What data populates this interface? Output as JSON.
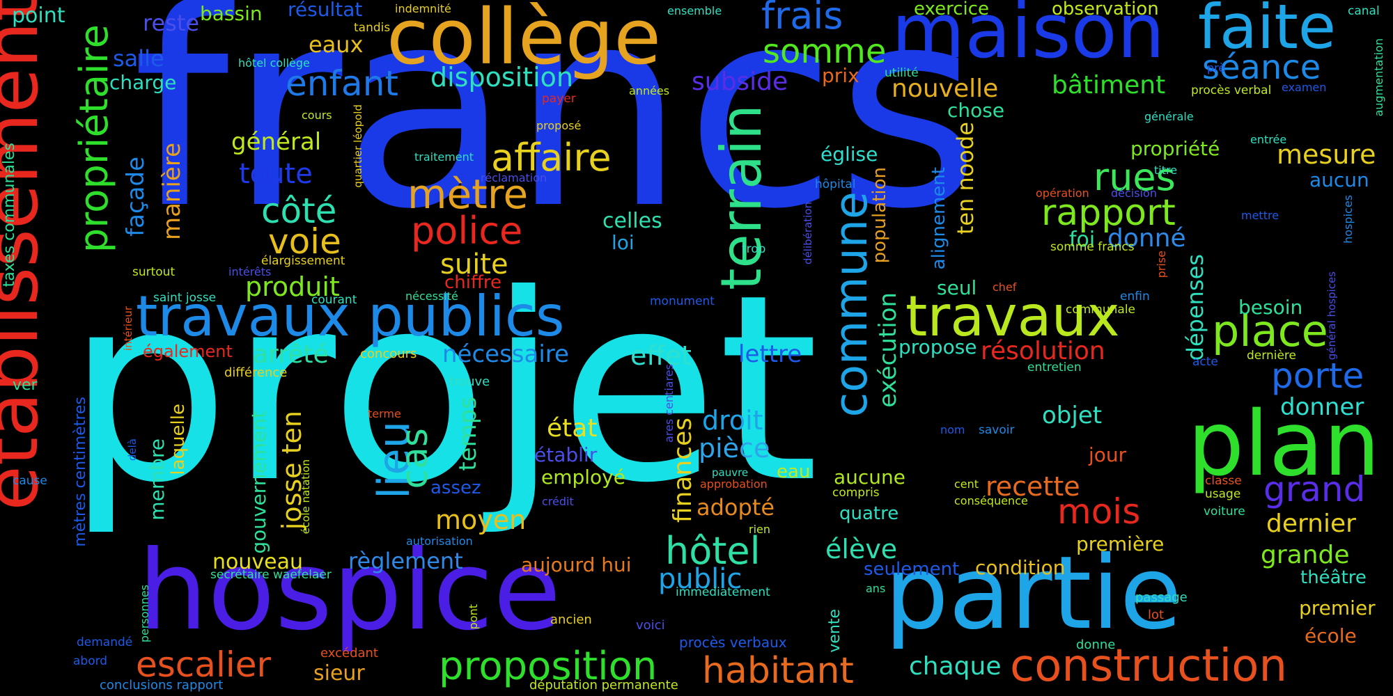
{
  "title": "",
  "words": [
    {
      "text": "francs",
      "color": "#1a3ae8"
    },
    {
      "text": "projet",
      "color": "#16e1e6"
    },
    {
      "text": "hospice",
      "color": "#4b1ee6"
    },
    {
      "text": "établissement",
      "color": "#e8281f"
    },
    {
      "text": "collège",
      "color": "#e6a31f"
    },
    {
      "text": "maison",
      "color": "#1a3ae8"
    },
    {
      "text": "faite",
      "color": "#1ea5e8"
    },
    {
      "text": "partie",
      "color": "#1ea5e8"
    },
    {
      "text": "plan",
      "color": "#2ee02c"
    },
    {
      "text": "travaux publics",
      "color": "#1e8ae8"
    },
    {
      "text": "terrain",
      "color": "#2ee08a"
    },
    {
      "text": "commune",
      "color": "#1ea5e8"
    },
    {
      "text": "travaux",
      "color": "#b9e81e"
    },
    {
      "text": "propriétaire",
      "color": "#2ee02c"
    },
    {
      "text": "construction",
      "color": "#e8501e"
    },
    {
      "text": "proposition",
      "color": "#2ee02c"
    },
    {
      "text": "place",
      "color": "#7ee81e"
    },
    {
      "text": "escalier",
      "color": "#e8501e"
    },
    {
      "text": "habitant",
      "color": "#e86a1e"
    },
    {
      "text": "frais",
      "color": "#1e6ae8"
    },
    {
      "text": "somme",
      "color": "#52e81e"
    },
    {
      "text": "séance",
      "color": "#1e8ae8"
    },
    {
      "text": "enfant",
      "color": "#1e7ae8"
    },
    {
      "text": "affaire",
      "color": "#e8d01e"
    },
    {
      "text": "mètre",
      "color": "#e6a31f"
    },
    {
      "text": "police",
      "color": "#e8281f"
    },
    {
      "text": "rapport",
      "color": "#7ee81e"
    },
    {
      "text": "rues",
      "color": "#3ae85a"
    },
    {
      "text": "lieu",
      "color": "#1ea5e8"
    },
    {
      "text": "hôtel",
      "color": "#2ee0a5"
    },
    {
      "text": "mois",
      "color": "#e8281f"
    },
    {
      "text": "grand",
      "color": "#5a2ee8"
    },
    {
      "text": "porte",
      "color": "#1e6ae8"
    },
    {
      "text": "côté",
      "color": "#2ee0b0"
    },
    {
      "text": "voie",
      "color": "#e8c01e"
    },
    {
      "text": "cas",
      "color": "#2ee09a"
    },
    {
      "text": "résolution",
      "color": "#e8281f"
    },
    {
      "text": "nouvelle",
      "color": "#e8b01e"
    },
    {
      "text": "disposition",
      "color": "#2ee0c0"
    },
    {
      "text": "subside",
      "color": "#5a2ee8"
    },
    {
      "text": "bâtiment",
      "color": "#2ee02c"
    },
    {
      "text": "façade",
      "color": "#1e8ae8"
    },
    {
      "text": "manière",
      "color": "#e8a01e"
    },
    {
      "text": "toute",
      "color": "#1e3ae8"
    },
    {
      "text": "général",
      "color": "#c0e81e"
    },
    {
      "text": "suite",
      "color": "#e8d01e"
    },
    {
      "text": "produit",
      "color": "#7ee81e"
    },
    {
      "text": "arrêté",
      "color": "#2ee0a5"
    },
    {
      "text": "nécessaire",
      "color": "#1e8ae8"
    },
    {
      "text": "effet",
      "color": "#2ee0d0"
    },
    {
      "text": "lettre",
      "color": "#1e5ae8"
    },
    {
      "text": "josse ten",
      "color": "#e8d01e"
    },
    {
      "text": "temps",
      "color": "#2ee09a"
    },
    {
      "text": "moyen",
      "color": "#e8c01e"
    },
    {
      "text": "règlement",
      "color": "#2e8ae8"
    },
    {
      "text": "aujourd hui",
      "color": "#e87a1e"
    },
    {
      "text": "public",
      "color": "#1ea5e8"
    },
    {
      "text": "finances",
      "color": "#e8d01e"
    },
    {
      "text": "pièce",
      "color": "#2ea5e8"
    },
    {
      "text": "droit",
      "color": "#1ea5e8"
    },
    {
      "text": "adopté",
      "color": "#e88a1e"
    },
    {
      "text": "état",
      "color": "#e8e01e"
    },
    {
      "text": "établir",
      "color": "#4b4ee8"
    },
    {
      "text": "employé",
      "color": "#b0e81e"
    },
    {
      "text": "recette",
      "color": "#e86a1e"
    },
    {
      "text": "objet",
      "color": "#2ee0c0"
    },
    {
      "text": "donner",
      "color": "#2ee0d0"
    },
    {
      "text": "dernier",
      "color": "#e8d01e"
    },
    {
      "text": "grande",
      "color": "#7ee81e"
    },
    {
      "text": "élève",
      "color": "#2ee0b0"
    },
    {
      "text": "condition",
      "color": "#e8c01e"
    },
    {
      "text": "première",
      "color": "#e8d01e"
    },
    {
      "text": "nouveau",
      "color": "#e8e01e"
    },
    {
      "text": "gouvernement",
      "color": "#2ee09a"
    },
    {
      "text": "membre",
      "color": "#2ee0b0"
    },
    {
      "text": "laquelle",
      "color": "#e8d01e"
    },
    {
      "text": "dépenses",
      "color": "#2ee0c0"
    },
    {
      "text": "exécution",
      "color": "#2ee09a"
    },
    {
      "text": "ten noode",
      "color": "#e8d01e"
    },
    {
      "text": "population",
      "color": "#e8a01e"
    },
    {
      "text": "alignement",
      "color": "#1e8ae8"
    },
    {
      "text": "église",
      "color": "#2ee0d0"
    },
    {
      "text": "celles",
      "color": "#2ee0b0"
    },
    {
      "text": "loi",
      "color": "#1ea5e8"
    },
    {
      "text": "donné",
      "color": "#2e8ae8"
    },
    {
      "text": "foi",
      "color": "#2ee09a"
    },
    {
      "text": "mesure",
      "color": "#e8d01e"
    },
    {
      "text": "aucun",
      "color": "#1e8ae8"
    },
    {
      "text": "propriété",
      "color": "#7ee81e"
    },
    {
      "text": "chose",
      "color": "#2ee09a"
    },
    {
      "text": "observation",
      "color": "#c0e81e"
    },
    {
      "text": "exercice",
      "color": "#7ee81e"
    },
    {
      "text": "eaux",
      "color": "#e8c01e"
    },
    {
      "text": "salle",
      "color": "#1e5ae8"
    },
    {
      "text": "reste",
      "color": "#4b4ee8"
    },
    {
      "text": "bassin",
      "color": "#7ee81e"
    },
    {
      "text": "résultat",
      "color": "#1e5ae8"
    },
    {
      "text": "charge",
      "color": "#2ee0c0"
    },
    {
      "text": "point",
      "color": "#2ee0c0"
    },
    {
      "text": "prix",
      "color": "#e86a1e"
    },
    {
      "text": "besoin",
      "color": "#2ee09a"
    },
    {
      "text": "seul",
      "color": "#2ee09a"
    },
    {
      "text": "propose",
      "color": "#2ee0c0"
    },
    {
      "text": "taxes communales",
      "color": "#2ee09a"
    },
    {
      "text": "mètres centimètres",
      "color": "#1e5ae8"
    },
    {
      "text": "chiffre",
      "color": "#e8281f"
    },
    {
      "text": "également",
      "color": "#e8281f"
    },
    {
      "text": "différence",
      "color": "#e8d01e"
    },
    {
      "text": "concours",
      "color": "#e8d01e"
    },
    {
      "text": "trouve",
      "color": "#2ee0c0"
    },
    {
      "text": "assez",
      "color": "#1e5ae8"
    },
    {
      "text": "sieur",
      "color": "#e8a01e"
    },
    {
      "text": "chaque",
      "color": "#2ee0c0"
    },
    {
      "text": "premier",
      "color": "#e8d01e"
    },
    {
      "text": "école",
      "color": "#e86a1e"
    },
    {
      "text": "théâtre",
      "color": "#2ee0c0"
    },
    {
      "text": "jour",
      "color": "#e8501e"
    },
    {
      "text": "aucune",
      "color": "#b0e81e"
    },
    {
      "text": "quatre",
      "color": "#2ee0c0"
    },
    {
      "text": "seulement",
      "color": "#1e5ae8"
    },
    {
      "text": "eau",
      "color": "#c0e81e"
    },
    {
      "text": "vente",
      "color": "#2ee0c0"
    },
    {
      "text": "ver",
      "color": "#2ee09a"
    },
    {
      "text": "cause",
      "color": "#1e8ae8"
    },
    {
      "text": "secrétaire waefelaer",
      "color": "#2ee09a"
    },
    {
      "text": "école natation",
      "color": "#c0e81e"
    },
    {
      "text": "conclusions rapport",
      "color": "#1e8ae8"
    },
    {
      "text": "députation permanente",
      "color": "#c0e81e"
    },
    {
      "text": "procès verbaux",
      "color": "#1e5ae8"
    },
    {
      "text": "excédant",
      "color": "#e8501e"
    },
    {
      "text": "personnes",
      "color": "#2ee09a"
    },
    {
      "text": "abord",
      "color": "#1e5ae8"
    },
    {
      "text": "demandé",
      "color": "#1e5ae8"
    },
    {
      "text": "pont",
      "color": "#c0e81e"
    },
    {
      "text": "ancien",
      "color": "#e8d01e"
    },
    {
      "text": "voici",
      "color": "#4b4ee8"
    },
    {
      "text": "immédiatement",
      "color": "#2ee0c0"
    },
    {
      "text": "rien",
      "color": "#c0e81e"
    },
    {
      "text": "autorisation",
      "color": "#1e8ae8"
    },
    {
      "text": "crédit",
      "color": "#4b4ee8"
    },
    {
      "text": "approbation",
      "color": "#e8501e"
    },
    {
      "text": "pauvre",
      "color": "#2ee0c0"
    },
    {
      "text": "compris",
      "color": "#c0e81e"
    },
    {
      "text": "ans",
      "color": "#2ee09a"
    },
    {
      "text": "passage",
      "color": "#2ee0c0"
    },
    {
      "text": "lot",
      "color": "#e8501e"
    },
    {
      "text": "donne",
      "color": "#2ee09a"
    },
    {
      "text": "voiture",
      "color": "#2ee09a"
    },
    {
      "text": "usage",
      "color": "#c0e81e"
    },
    {
      "text": "classe",
      "color": "#e8501e"
    },
    {
      "text": "cent",
      "color": "#c0e81e"
    },
    {
      "text": "conséquence",
      "color": "#c0e81e"
    },
    {
      "text": "nom",
      "color": "#1e5ae8"
    },
    {
      "text": "savoir",
      "color": "#1e8ae8"
    },
    {
      "text": "terme",
      "color": "#e8501e"
    },
    {
      "text": "delà",
      "color": "#1e5ae8"
    },
    {
      "text": "ares centiares",
      "color": "#4b4ee8"
    },
    {
      "text": "monument",
      "color": "#1e5ae8"
    },
    {
      "text": "saint josse",
      "color": "#2ee0c0"
    },
    {
      "text": "courant",
      "color": "#2ee0c0"
    },
    {
      "text": "nécessité",
      "color": "#2ee09a"
    },
    {
      "text": "surtout",
      "color": "#c0e81e"
    },
    {
      "text": "intérêts",
      "color": "#4b4ee8"
    },
    {
      "text": "élargissement",
      "color": "#e8d01e"
    },
    {
      "text": "intérieur",
      "color": "#e8501e"
    },
    {
      "text": "quartier léopold",
      "color": "#e8d01e"
    },
    {
      "text": "traitement",
      "color": "#2ee0c0"
    },
    {
      "text": "réclamation",
      "color": "#4b4ee8"
    },
    {
      "text": "cours",
      "color": "#c0e81e"
    },
    {
      "text": "proposé",
      "color": "#e8d01e"
    },
    {
      "text": "payer",
      "color": "#e8281f"
    },
    {
      "text": "années",
      "color": "#c0e81e"
    },
    {
      "text": "hôtel collège",
      "color": "#2ee0c0"
    },
    {
      "text": "tandis",
      "color": "#e8d01e"
    },
    {
      "text": "indemnité",
      "color": "#e8d01e"
    },
    {
      "text": "ensemble",
      "color": "#2ee0c0"
    },
    {
      "text": "utilité",
      "color": "#2ee09a"
    },
    {
      "text": "procès verbal",
      "color": "#c0e81e"
    },
    {
      "text": "examen",
      "color": "#1e5ae8"
    },
    {
      "text": "canal",
      "color": "#2ee0c0"
    },
    {
      "text": "augmentation",
      "color": "#2ee09a"
    },
    {
      "text": "prè",
      "color": "#1e5ae8"
    },
    {
      "text": "générale",
      "color": "#2ee0c0"
    },
    {
      "text": "entrée",
      "color": "#2ee0c0"
    },
    {
      "text": "titre",
      "color": "#2ee0c0"
    },
    {
      "text": "opération",
      "color": "#e8501e"
    },
    {
      "text": "décision",
      "color": "#4b4ee8"
    },
    {
      "text": "mettre",
      "color": "#1e5ae8"
    },
    {
      "text": "hôpital",
      "color": "#1e8ae8"
    },
    {
      "text": "délibération",
      "color": "#4b4ee8"
    },
    {
      "text": "trop",
      "color": "#2ee0c0"
    },
    {
      "text": "somme francs",
      "color": "#c0e81e"
    },
    {
      "text": "prise",
      "color": "#e8501e"
    },
    {
      "text": "hospices",
      "color": "#1e8ae8"
    },
    {
      "text": "général hospices",
      "color": "#4b4ee8"
    },
    {
      "text": "enfin",
      "color": "#1e8ae8"
    },
    {
      "text": "communale",
      "color": "#c0e81e"
    },
    {
      "text": "chef",
      "color": "#e8501e"
    },
    {
      "text": "entretien",
      "color": "#2ee09a"
    },
    {
      "text": "acte",
      "color": "#1e5ae8"
    },
    {
      "text": "dernière",
      "color": "#c0e81e"
    }
  ]
}
